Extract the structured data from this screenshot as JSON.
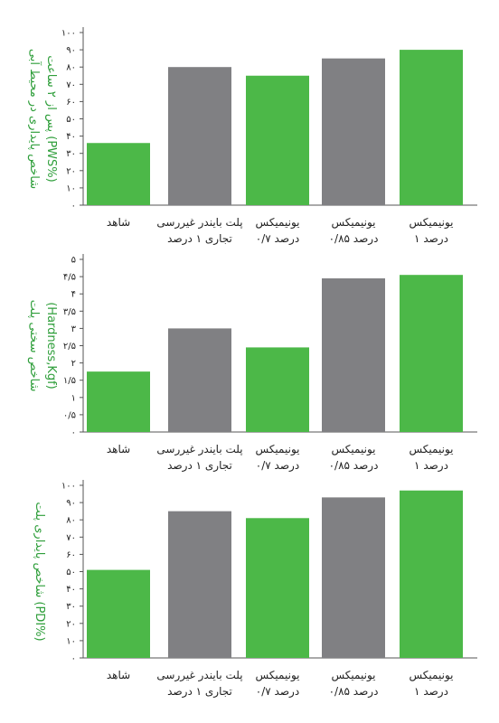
{
  "colors": {
    "green": "#4cb848",
    "gray": "#808083",
    "axis": "#555555",
    "text": "#222222",
    "ylabel": "#2e9e3a"
  },
  "chart_data": [
    {
      "type": "bar",
      "ylabel_lines": [
        "شاخص پایداری در محیط آبی",
        "پس از ۲ ساعت (PWS%)"
      ],
      "tick_labels": [
        "۰",
        "۱۰",
        "۲۰",
        "۳۰",
        "۴۰",
        "۵۰",
        "۶۰",
        "۷۰",
        "۸۰",
        "۹۰",
        "۱۰۰"
      ],
      "ylim": [
        0,
        100
      ],
      "categories": [
        [
          "شاهد"
        ],
        [
          "پلت بایندر غیررسی",
          "تجاری ۱ درصد"
        ],
        [
          "یونیمیکس",
          "۰/۷ درصد"
        ],
        [
          "یونیمیکس",
          "۰/۸۵ درصد"
        ],
        [
          "یونیمیکس",
          "۱ درصد"
        ]
      ],
      "values": [
        36,
        80,
        75,
        85,
        90
      ],
      "bar_colors": [
        "green",
        "gray",
        "green",
        "gray",
        "green"
      ]
    },
    {
      "type": "bar",
      "ylabel_lines": [
        "شاخص سختی پلت",
        "(Hardness,Kgf)"
      ],
      "tick_labels": [
        "۰",
        "۰/۵",
        "۱",
        "۱/۵",
        "۲",
        "۲/۵",
        "۳",
        "۳/۵",
        "۴",
        "۴/۵",
        "۵"
      ],
      "ylim": [
        0,
        5
      ],
      "categories": [
        [
          "شاهد"
        ],
        [
          "پلت بایندر غیررسی",
          "تجاری ۱ درصد"
        ],
        [
          "یونیمیکس",
          "۰/۷ درصد"
        ],
        [
          "یونیمیکس",
          "۰/۸۵ درصد"
        ],
        [
          "یونیمیکس",
          "۱ درصد"
        ]
      ],
      "values": [
        1.75,
        3.0,
        2.45,
        4.45,
        4.55
      ],
      "bar_colors": [
        "green",
        "gray",
        "green",
        "gray",
        "green"
      ]
    },
    {
      "type": "bar",
      "ylabel_lines": [
        "شاخص پایداری پلت (PDI%)"
      ],
      "tick_labels": [
        "۰",
        "۱۰",
        "۲۰",
        "۳۰",
        "۴۰",
        "۵۰",
        "۶۰",
        "۷۰",
        "۸۰",
        "۹۰",
        "۱۰۰"
      ],
      "ylim": [
        0,
        100
      ],
      "categories": [
        [
          "شاهد"
        ],
        [
          "پلت بایندر غیررسی",
          "تجاری ۱ درصد"
        ],
        [
          "یونیمیکس",
          "۰/۷ درصد"
        ],
        [
          "یونیمیکس",
          "۰/۸۵ درصد"
        ],
        [
          "یونیمیکس",
          "۱ درصد"
        ]
      ],
      "values": [
        51,
        85,
        81,
        93,
        97
      ],
      "bar_colors": [
        "green",
        "gray",
        "green",
        "gray",
        "green"
      ]
    }
  ]
}
